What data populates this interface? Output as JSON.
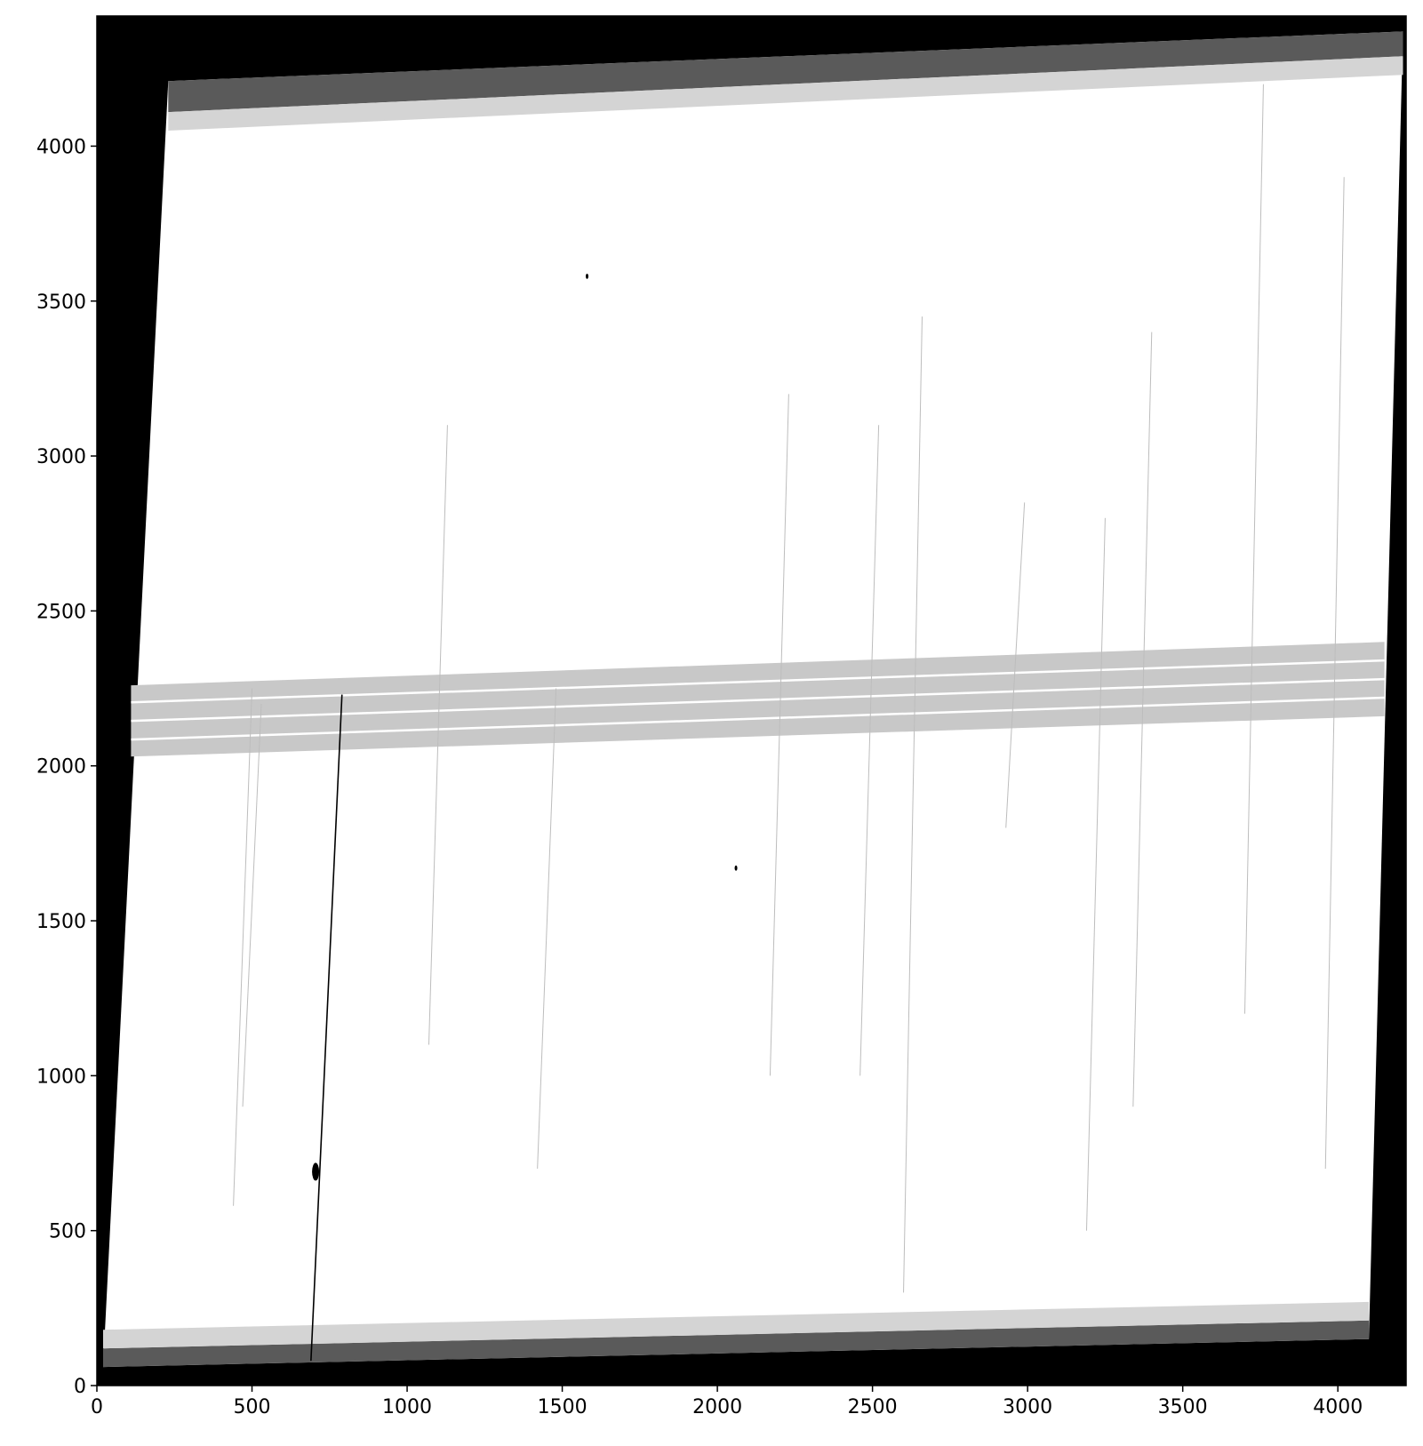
{
  "chart_data": {
    "type": "heatmap",
    "description": "Grayscale astronomical CCD frame (rotated/sheared detector footprint) on a black background",
    "colormap": "gray_r",
    "xlim": [
      0,
      4220
    ],
    "ylim": [
      0,
      4420
    ],
    "x_ticks": [
      {
        "value": 0,
        "label": "0"
      },
      {
        "value": 500,
        "label": "500"
      },
      {
        "value": 1000,
        "label": "1000"
      },
      {
        "value": 1500,
        "label": "1500"
      },
      {
        "value": 2000,
        "label": "2000"
      },
      {
        "value": 2500,
        "label": "2500"
      },
      {
        "value": 3000,
        "label": "3000"
      },
      {
        "value": 3500,
        "label": "3500"
      },
      {
        "value": 4000,
        "label": "4000"
      }
    ],
    "y_ticks": [
      {
        "value": 0,
        "label": "0"
      },
      {
        "value": 500,
        "label": "500"
      },
      {
        "value": 1000,
        "label": "1000"
      },
      {
        "value": 1500,
        "label": "1500"
      },
      {
        "value": 2000,
        "label": "2000"
      },
      {
        "value": 2500,
        "label": "2500"
      },
      {
        "value": 3000,
        "label": "3000"
      },
      {
        "value": 3500,
        "label": "3500"
      },
      {
        "value": 4000,
        "label": "4000"
      }
    ],
    "detector_outline": [
      [
        20,
        60
      ],
      [
        4100,
        150
      ],
      [
        4210,
        4370
      ],
      [
        230,
        4210
      ]
    ],
    "bottom_band_dark": [
      [
        20,
        60
      ],
      [
        4100,
        150
      ],
      [
        4100,
        210
      ],
      [
        20,
        120
      ]
    ],
    "bottom_band_light": [
      [
        20,
        120
      ],
      [
        4100,
        210
      ],
      [
        4100,
        270
      ],
      [
        20,
        180
      ]
    ],
    "top_band_dark": [
      [
        230,
        4110
      ],
      [
        4210,
        4290
      ],
      [
        4210,
        4370
      ],
      [
        230,
        4210
      ]
    ],
    "top_band_light": [
      [
        230,
        4050
      ],
      [
        4210,
        4230
      ],
      [
        4210,
        4290
      ],
      [
        230,
        4110
      ]
    ],
    "middle_band": [
      [
        110,
        2030
      ],
      [
        4150,
        2160
      ],
      [
        4150,
        2400
      ],
      [
        110,
        2260
      ]
    ],
    "middle_band_white_lines": [
      [
        [
          110,
          2085
        ],
        [
          4150,
          2220
        ]
      ],
      [
        [
          110,
          2145
        ],
        [
          4150,
          2280
        ]
      ],
      [
        [
          110,
          2205
        ],
        [
          4150,
          2340
        ]
      ]
    ],
    "bright_streak": [
      [
        690,
        80
      ],
      [
        790,
        2230
      ]
    ],
    "bright_source": [
      705,
      690
    ],
    "bright_dots": [
      [
        1580,
        3580
      ],
      [
        2060,
        1670
      ]
    ],
    "colors": {
      "background": "#000000",
      "field": "#ffffff",
      "band_dark": "#5a5a5a",
      "band_light": "#d4d4d4",
      "middle_band": "#c8c8c8",
      "streak": "#000000"
    }
  }
}
